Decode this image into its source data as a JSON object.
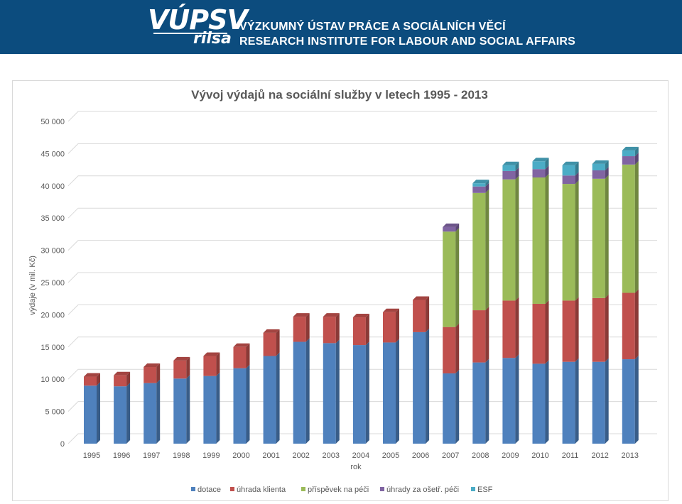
{
  "header": {
    "logo_top": "VÚPSV",
    "logo_bottom": "rilsa",
    "institute_cz": "VÝZKUMNÝ ÚSTAV PRÁCE A SOCIÁLNÍCH VĚCÍ",
    "institute_en": "RESEARCH INSTITUTE FOR LABOUR AND SOCIAL AFFAIRS"
  },
  "colors": {
    "header_bg": "#0c4c7e",
    "dotace": "#4f81bd",
    "uhrada_klienta": "#c0504d",
    "prispevek_na_peci": "#9bbb59",
    "uhrady_za_osetr_peci": "#8064a2",
    "esf": "#4bacc6"
  },
  "chart_data": {
    "type": "bar",
    "stacked": true,
    "style": "3d",
    "title": "Vývoj výdajů na sociální služby v letech 1995 - 2013",
    "xlabel": "rok",
    "ylabel": "výdaje (v mil. Kč)",
    "ylim": [
      0,
      50000
    ],
    "yticks": [
      0,
      5000,
      10000,
      15000,
      20000,
      25000,
      30000,
      35000,
      40000,
      45000,
      50000
    ],
    "ytick_labels": [
      "0",
      "5 000",
      "10 000",
      "15 000",
      "20 000",
      "25 000",
      "30 000",
      "35 000",
      "40 000",
      "45 000",
      "50 000"
    ],
    "grid": true,
    "legend_position": "bottom",
    "categories": [
      "1995",
      "1996",
      "1997",
      "1998",
      "1999",
      "2000",
      "2001",
      "2002",
      "2003",
      "2004",
      "2005",
      "2006",
      "2007",
      "2008",
      "2009",
      "2010",
      "2011",
      "2012",
      "2013"
    ],
    "series": [
      {
        "name": "dotace",
        "color": "#4f81bd",
        "values": [
          9000,
          8900,
          9400,
          10100,
          10500,
          11700,
          13600,
          15800,
          15600,
          15300,
          15700,
          17300,
          10900,
          12600,
          13300,
          12400,
          12700,
          12700,
          13100
        ]
      },
      {
        "name": "úhrada klienta",
        "color": "#c0504d",
        "values": [
          1400,
          1700,
          2500,
          2800,
          3100,
          3300,
          3600,
          3900,
          4100,
          4300,
          4700,
          5000,
          7200,
          8100,
          8900,
          9300,
          9500,
          9900,
          10300
        ]
      },
      {
        "name": "příspěvek na péči",
        "color": "#9bbb59",
        "values": [
          0,
          0,
          0,
          0,
          0,
          0,
          0,
          0,
          0,
          0,
          0,
          0,
          14800,
          18200,
          18800,
          19600,
          18100,
          18500,
          19900
        ]
      },
      {
        "name": "úhrady za ošetř. péči",
        "color": "#8064a2",
        "values": [
          0,
          0,
          0,
          0,
          0,
          0,
          0,
          0,
          0,
          0,
          0,
          0,
          700,
          1000,
          1300,
          1300,
          1300,
          1300,
          1300
        ]
      },
      {
        "name": "ESF",
        "color": "#4bacc6",
        "values": [
          0,
          0,
          0,
          0,
          0,
          0,
          0,
          0,
          0,
          0,
          0,
          0,
          0,
          500,
          900,
          1200,
          1600,
          1000,
          900
        ]
      }
    ]
  }
}
